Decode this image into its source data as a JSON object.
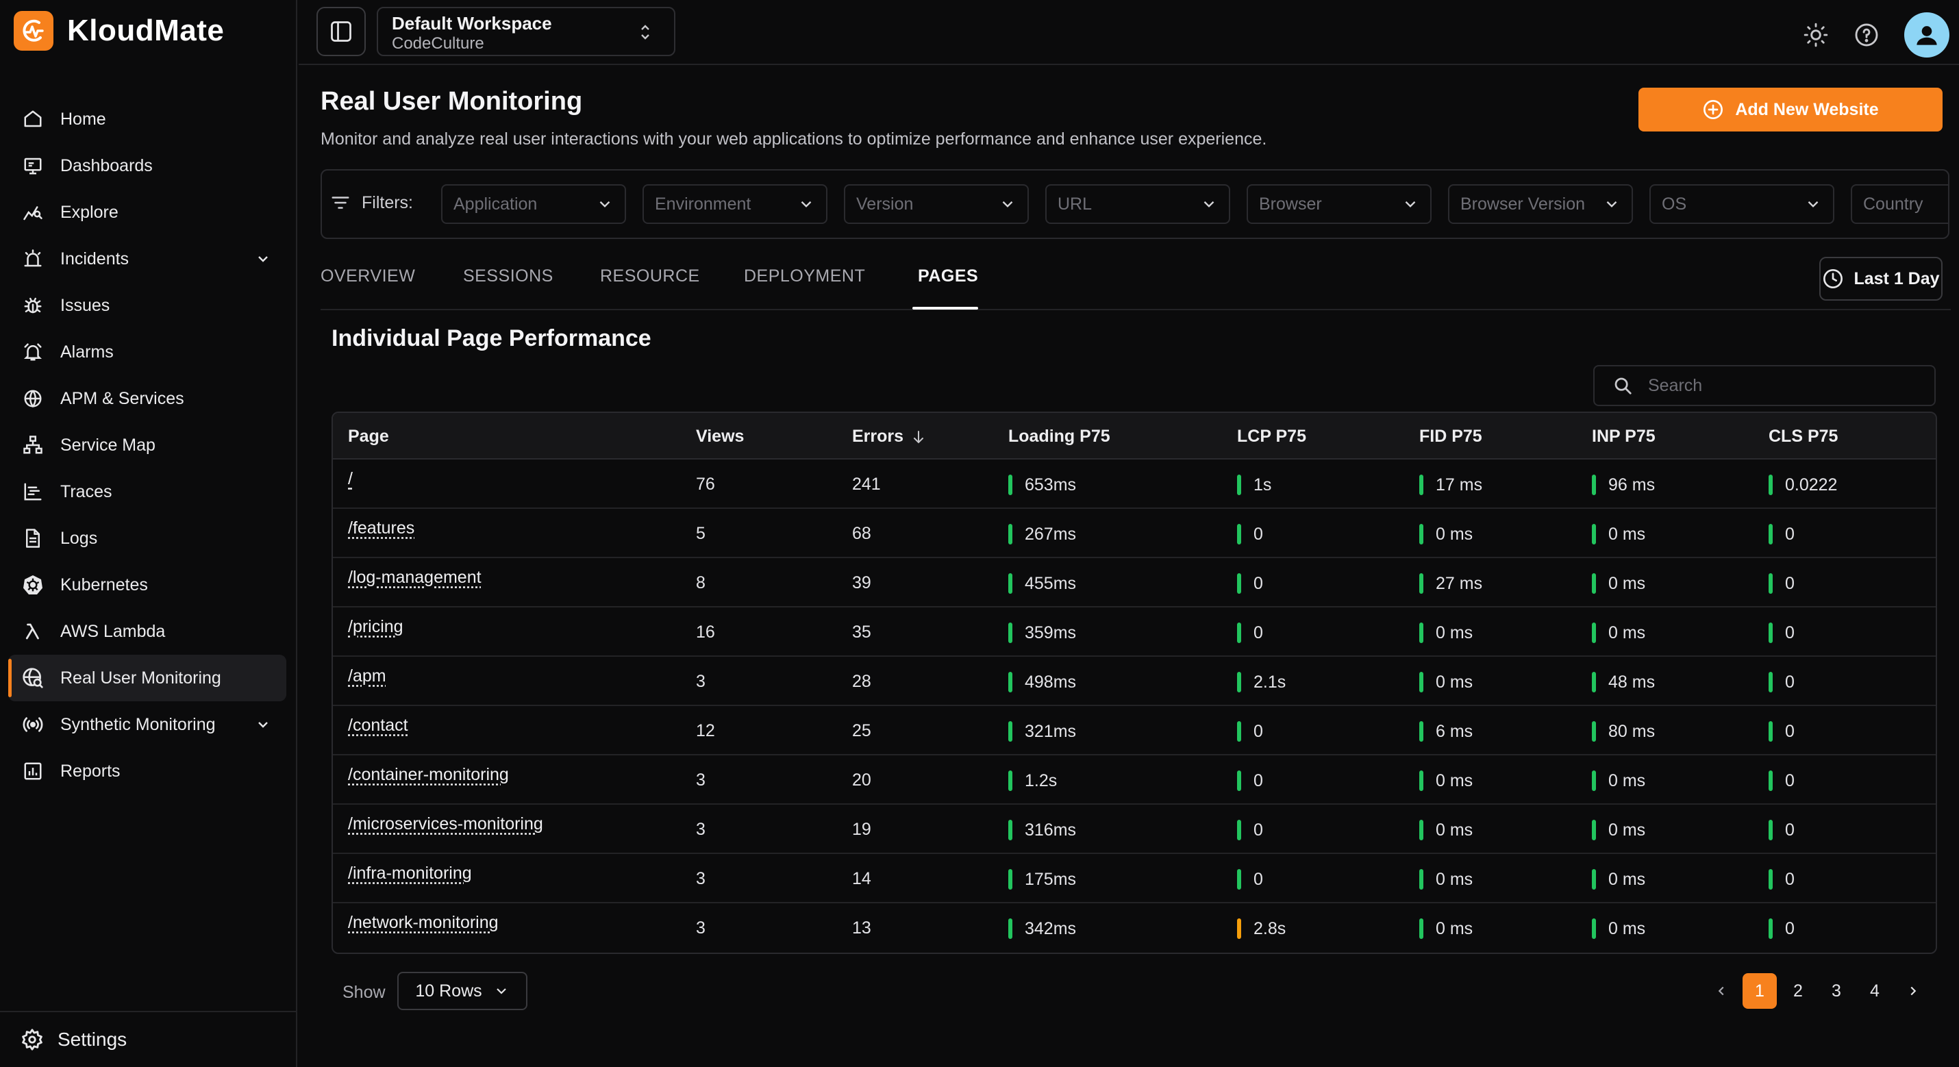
{
  "app": {
    "name": "KloudMate",
    "brand_color": "#f7811d"
  },
  "sidebar": {
    "items": [
      {
        "label": "Home",
        "icon": "home-icon"
      },
      {
        "label": "Dashboards",
        "icon": "dashboard-icon"
      },
      {
        "label": "Explore",
        "icon": "explore-icon"
      },
      {
        "label": "Incidents",
        "icon": "incidents-icon",
        "expandable": true
      },
      {
        "label": "Issues",
        "icon": "bug-icon"
      },
      {
        "label": "Alarms",
        "icon": "alarm-icon"
      },
      {
        "label": "APM & Services",
        "icon": "globe-icon"
      },
      {
        "label": "Service Map",
        "icon": "service-map-icon"
      },
      {
        "label": "Traces",
        "icon": "traces-icon"
      },
      {
        "label": "Logs",
        "icon": "logs-icon"
      },
      {
        "label": "Kubernetes",
        "icon": "kubernetes-icon"
      },
      {
        "label": "AWS Lambda",
        "icon": "lambda-icon"
      },
      {
        "label": "Real User Monitoring",
        "icon": "rum-icon",
        "active": true
      },
      {
        "label": "Synthetic Monitoring",
        "icon": "synthetic-icon",
        "expandable": true
      },
      {
        "label": "Reports",
        "icon": "reports-icon"
      }
    ],
    "settings_label": "Settings"
  },
  "topbar": {
    "workspace_name": "Default Workspace",
    "workspace_org": "CodeCulture"
  },
  "page": {
    "title": "Real User Monitoring",
    "description": "Monitor and analyze real user interactions with your web applications to optimize performance and enhance user experience.",
    "add_button": "Add New Website"
  },
  "filters": {
    "label": "Filters:",
    "items": [
      "Application",
      "Environment",
      "Version",
      "URL",
      "Browser",
      "Browser Version",
      "OS",
      "Country"
    ]
  },
  "tabs": {
    "items": [
      "OVERVIEW",
      "SESSIONS",
      "RESOURCE",
      "DEPLOYMENT",
      "PAGES"
    ],
    "active": "PAGES",
    "range": "Last 1 Day"
  },
  "section": {
    "title": "Individual Page Performance",
    "search_placeholder": "Search"
  },
  "table": {
    "columns": [
      "Page",
      "Views",
      "Errors",
      "Loading P75",
      "LCP P75",
      "FID P75",
      "INP P75",
      "CLS P75"
    ],
    "sorted_column": "Errors",
    "rows": [
      {
        "page": "/",
        "views": "76",
        "errors": "241",
        "loading": "653ms",
        "lcp": "1s",
        "fid": "17 ms",
        "inp": "96 ms",
        "cls": "0.0222",
        "lcp_status": "good"
      },
      {
        "page": "/features",
        "views": "5",
        "errors": "68",
        "loading": "267ms",
        "lcp": "0",
        "fid": "0 ms",
        "inp": "0 ms",
        "cls": "0",
        "lcp_status": "good"
      },
      {
        "page": "/log-management",
        "views": "8",
        "errors": "39",
        "loading": "455ms",
        "lcp": "0",
        "fid": "27 ms",
        "inp": "0 ms",
        "cls": "0",
        "lcp_status": "good"
      },
      {
        "page": "/pricing",
        "views": "16",
        "errors": "35",
        "loading": "359ms",
        "lcp": "0",
        "fid": "0 ms",
        "inp": "0 ms",
        "cls": "0",
        "lcp_status": "good"
      },
      {
        "page": "/apm",
        "views": "3",
        "errors": "28",
        "loading": "498ms",
        "lcp": "2.1s",
        "fid": "0 ms",
        "inp": "48 ms",
        "cls": "0",
        "lcp_status": "good"
      },
      {
        "page": "/contact",
        "views": "12",
        "errors": "25",
        "loading": "321ms",
        "lcp": "0",
        "fid": "6 ms",
        "inp": "80 ms",
        "cls": "0",
        "lcp_status": "good"
      },
      {
        "page": "/container-monitoring",
        "views": "3",
        "errors": "20",
        "loading": "1.2s",
        "lcp": "0",
        "fid": "0 ms",
        "inp": "0 ms",
        "cls": "0",
        "lcp_status": "good"
      },
      {
        "page": "/microservices-monitoring",
        "views": "3",
        "errors": "19",
        "loading": "316ms",
        "lcp": "0",
        "fid": "0 ms",
        "inp": "0 ms",
        "cls": "0",
        "lcp_status": "good"
      },
      {
        "page": "/infra-monitoring",
        "views": "3",
        "errors": "14",
        "loading": "175ms",
        "lcp": "0",
        "fid": "0 ms",
        "inp": "0 ms",
        "cls": "0",
        "lcp_status": "good"
      },
      {
        "page": "/network-monitoring",
        "views": "3",
        "errors": "13",
        "loading": "342ms",
        "lcp": "2.8s",
        "fid": "0 ms",
        "inp": "0 ms",
        "cls": "0",
        "lcp_status": "needs-improvement"
      }
    ],
    "status_colors": {
      "good": "#22c55e",
      "needs-improvement": "#f59e0b"
    }
  },
  "pagination": {
    "show_label": "Show",
    "rows_option": "10 Rows",
    "pages": [
      "1",
      "2",
      "3",
      "4"
    ],
    "current": "1"
  }
}
